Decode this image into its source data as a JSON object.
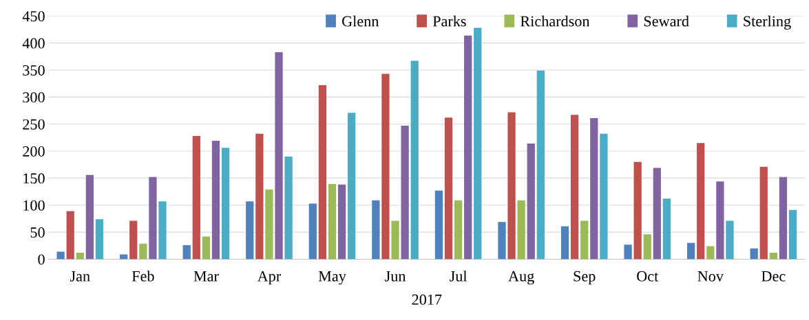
{
  "chart_data": {
    "type": "bar",
    "xlabel": "2017",
    "categories": [
      "Jan",
      "Feb",
      "Mar",
      "Apr",
      "May",
      "Jun",
      "Jul",
      "Aug",
      "Sep",
      "Oct",
      "Nov",
      "Dec"
    ],
    "series": [
      {
        "name": "Glenn",
        "color": "#4f81bd",
        "values": [
          14,
          9,
          26,
          107,
          103,
          109,
          127,
          69,
          61,
          27,
          30,
          20
        ]
      },
      {
        "name": "Parks",
        "color": "#c0504d",
        "values": [
          89,
          71,
          228,
          232,
          322,
          343,
          262,
          272,
          267,
          180,
          215,
          171
        ]
      },
      {
        "name": "Richardson",
        "color": "#9bbb59",
        "values": [
          12,
          29,
          42,
          129,
          139,
          71,
          109,
          109,
          71,
          46,
          24,
          12
        ]
      },
      {
        "name": "Seward",
        "color": "#8064a2",
        "values": [
          156,
          152,
          219,
          383,
          138,
          247,
          414,
          214,
          261,
          169,
          144,
          152
        ]
      },
      {
        "name": "Sterling",
        "color": "#4bacc6",
        "values": [
          74,
          107,
          206,
          190,
          271,
          367,
          428,
          349,
          232,
          112,
          71,
          91
        ]
      }
    ],
    "ylim": [
      0,
      450
    ],
    "yticks": [
      0,
      50,
      100,
      150,
      200,
      250,
      300,
      350,
      400,
      450
    ],
    "grid": "y",
    "legend": "top right"
  }
}
